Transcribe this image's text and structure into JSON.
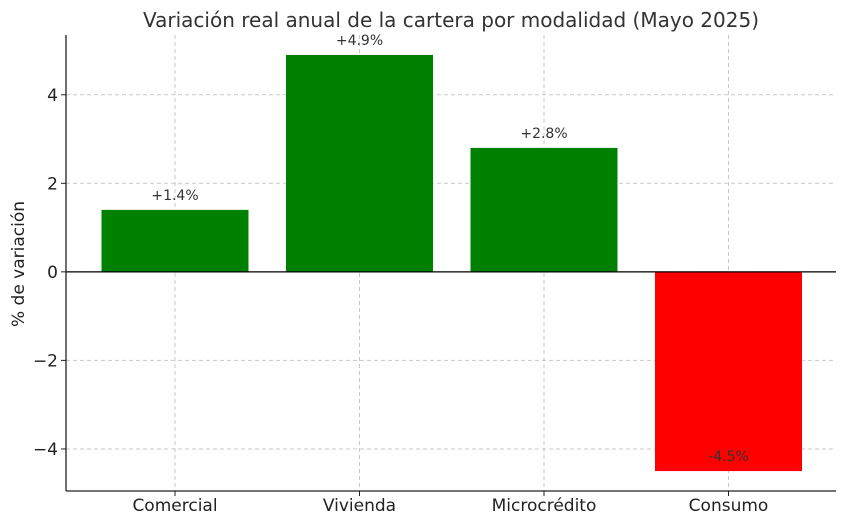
{
  "chart_data": {
    "type": "bar",
    "title": "Variación real anual de la cartera por modalidad (Mayo 2025)",
    "xlabel": "",
    "ylabel": "% de variación",
    "categories": [
      "Comercial",
      "Vivienda",
      "Microcrédito",
      "Consumo"
    ],
    "values": [
      1.4,
      4.9,
      2.8,
      -4.5
    ],
    "data_labels": [
      "+1.4%",
      "+4.9%",
      "+2.8%",
      "-4.5%"
    ],
    "colors": [
      "#008000",
      "#008000",
      "#008000",
      "#ff0000"
    ],
    "yticks": [
      -4,
      -2,
      0,
      2,
      4
    ],
    "ytick_labels": [
      "−4",
      "−2",
      "0",
      "2",
      "4"
    ],
    "ylim": [
      -4.95,
      5.35
    ],
    "grid": true,
    "zero_line": true
  }
}
